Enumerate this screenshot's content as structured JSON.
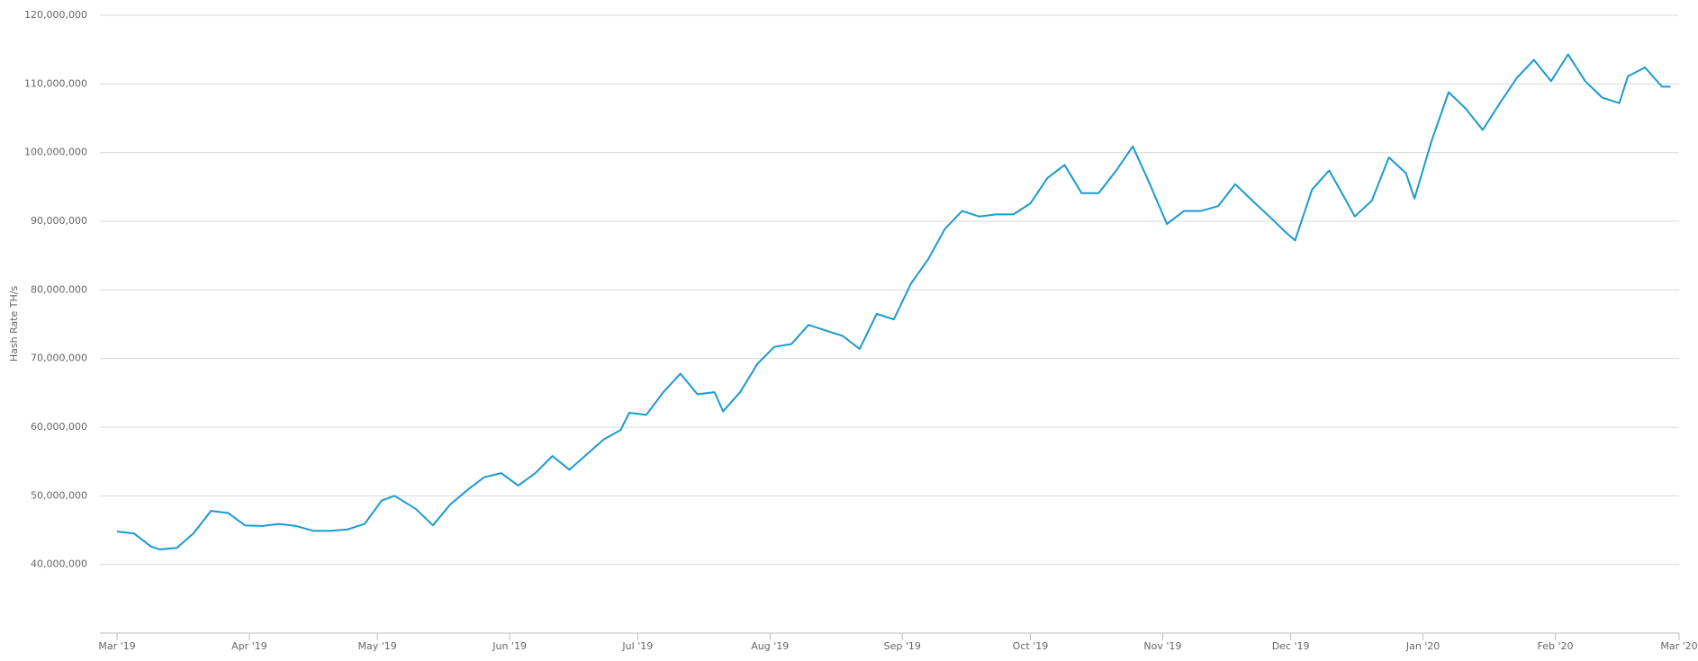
{
  "chart_data": {
    "type": "line",
    "y_axis_label": "Hash Rate TH/s",
    "x": [
      0,
      4,
      8,
      10,
      14,
      18,
      22,
      26,
      30,
      34,
      38,
      42,
      46,
      50,
      54,
      58,
      62,
      65,
      70,
      74,
      78,
      82,
      86,
      90,
      94,
      98,
      102,
      106,
      110,
      114,
      118,
      120,
      124,
      128,
      132,
      136,
      140,
      142,
      146,
      150,
      154,
      158,
      162,
      166,
      170,
      174,
      178,
      182,
      186,
      190,
      194,
      198,
      202,
      206,
      210,
      214,
      218,
      222,
      226,
      230,
      234,
      238,
      242,
      246,
      250,
      254,
      258,
      262,
      266,
      270,
      274,
      276,
      280,
      284,
      288,
      290,
      294,
      298,
      302,
      304,
      308,
      312,
      316,
      320,
      324,
      328,
      332,
      336,
      340,
      344,
      348,
      352,
      354,
      358,
      362,
      364
    ],
    "series": [
      {
        "color": "#1a9ad0",
        "values": [
          44800000,
          44500000,
          42600000,
          42200000,
          42400000,
          44600000,
          47800000,
          47500000,
          45700000,
          45600000,
          45900000,
          45600000,
          44900000,
          44900000,
          45100000,
          45900000,
          49300000,
          50000000,
          48100000,
          45700000,
          48700000,
          50800000,
          52700000,
          53300000,
          51500000,
          53300000,
          55800000,
          53800000,
          56000000,
          58200000,
          59600000,
          62100000,
          61800000,
          65100000,
          67800000,
          64800000,
          65100000,
          62300000,
          65100000,
          69200000,
          71700000,
          72100000,
          74900000,
          74100000,
          73300000,
          71400000,
          76500000,
          75700000,
          80900000,
          84400000,
          88900000,
          91500000,
          90700000,
          91000000,
          91000000,
          92600000,
          96300000,
          98200000,
          94100000,
          94100000,
          97300000,
          100900000,
          95400000,
          89600000,
          91500000,
          91500000,
          92200000,
          95400000,
          93000000,
          90700000,
          88300000,
          87200000,
          94600000,
          97400000,
          93000000,
          90700000,
          93000000,
          99300000,
          97000000,
          93300000,
          101700000,
          108800000,
          106400000,
          103300000,
          107200000,
          110900000,
          113500000,
          110400000,
          114300000,
          110400000,
          108000000,
          107200000,
          111100000,
          112400000,
          109600000,
          109600000
        ]
      }
    ],
    "xlim": [
      0,
      366
    ],
    "xticks": [
      {
        "value": 0,
        "label": "Mar '19"
      },
      {
        "value": 31,
        "label": "Apr '19"
      },
      {
        "value": 61,
        "label": "May '19"
      },
      {
        "value": 92,
        "label": "Jun '19"
      },
      {
        "value": 122,
        "label": "Jul '19"
      },
      {
        "value": 153,
        "label": "Aug '19"
      },
      {
        "value": 184,
        "label": "Sep '19"
      },
      {
        "value": 214,
        "label": "Oct '19"
      },
      {
        "value": 245,
        "label": "Nov '19"
      },
      {
        "value": 275,
        "label": "Dec '19"
      },
      {
        "value": 306,
        "label": "Jan '20"
      },
      {
        "value": 337,
        "label": "Feb '20"
      },
      {
        "value": 366,
        "label": "Mar '20"
      }
    ],
    "ylim": [
      30000000,
      120000000
    ],
    "yticks": [
      {
        "value": 40000000,
        "label": "40,000,000"
      },
      {
        "value": 50000000,
        "label": "50,000,000"
      },
      {
        "value": 60000000,
        "label": "60,000,000"
      },
      {
        "value": 70000000,
        "label": "70,000,000"
      },
      {
        "value": 80000000,
        "label": "80,000,000"
      },
      {
        "value": 90000000,
        "label": "90,000,000"
      },
      {
        "value": 100000000,
        "label": "100,000,000"
      },
      {
        "value": 110000000,
        "label": "110,000,000"
      },
      {
        "value": 120000000,
        "label": "120,000,000"
      }
    ],
    "grid": true
  }
}
